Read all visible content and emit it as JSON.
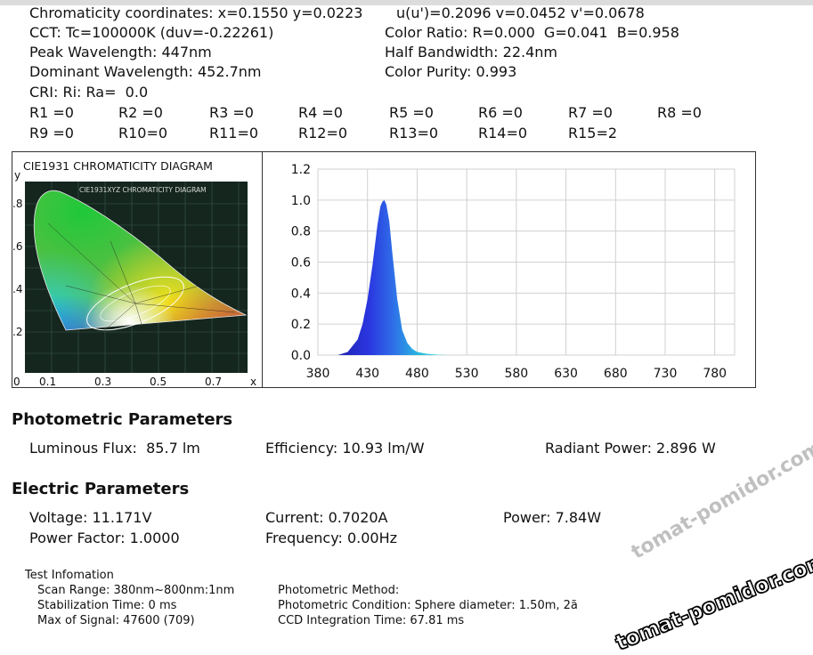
{
  "header": {
    "chromaticity": "Chromaticity coordinates: x=0.1550 y=0.0223",
    "uv": "u(u')=0.2096 v=0.0452 v'=0.0678",
    "cct": "CCT: Tc=100000K (duv=-0.22261)",
    "color_ratio": "Color Ratio: R=0.000  G=0.041  B=0.958",
    "peak": "Peak Wavelength: 447nm",
    "half_bandwidth": "Half Bandwidth: 22.4nm",
    "dominant": "Dominant Wavelength: 452.7nm",
    "purity": "Color Purity: 0.993",
    "cri": "CRI: Ri: Ra=  0.0"
  },
  "ri_values": [
    "R1 =0",
    "R2 =0",
    "R3 =0",
    "R4 =0",
    "R5 =0",
    "R6 =0",
    "R7 =0",
    "R8 =0",
    "R9 =0",
    "R10=0",
    "R11=0",
    "R12=0",
    "R13=0",
    "R14=0",
    "R15=2"
  ],
  "cie": {
    "title": "CIE1931 CHROMATICITY DIAGRAM",
    "inner_title": "CIE1931XYZ CHROMATICITY DIAGRAM",
    "y_label": "y",
    "x_label": "x",
    "y_ticks": [
      ".8",
      ".6",
      ".4",
      ".2"
    ],
    "x_ticks": [
      "0",
      "0.1",
      "0.3",
      "0.5",
      "0.7"
    ]
  },
  "chart_data": {
    "type": "area",
    "title": "",
    "xlabel": "",
    "ylabel": "",
    "xlim": [
      380,
      800
    ],
    "ylim": [
      0,
      1.2
    ],
    "x_ticks": [
      380,
      430,
      480,
      530,
      580,
      630,
      680,
      730,
      780
    ],
    "y_ticks": [
      "0.0",
      "0.2",
      "0.4",
      "0.6",
      "0.8",
      "1.0",
      "1.2"
    ],
    "grid": true,
    "series": [
      {
        "x": [
          400,
          410,
          420,
          425,
          430,
          435,
          440,
          443,
          445,
          447,
          449,
          452,
          455,
          460,
          465,
          470,
          475,
          480,
          490,
          500,
          510
        ],
        "y": [
          0.0,
          0.02,
          0.1,
          0.2,
          0.36,
          0.58,
          0.84,
          0.96,
          0.99,
          1.0,
          0.97,
          0.86,
          0.66,
          0.36,
          0.16,
          0.08,
          0.04,
          0.02,
          0.008,
          0.003,
          0.0
        ]
      }
    ]
  },
  "photometric": {
    "heading": "Photometric Parameters",
    "flux": "Luminous Flux:  85.7 lm",
    "efficiency": "Efficiency: 10.93 lm/W",
    "radiant": "Radiant Power: 2.896 W"
  },
  "electric": {
    "heading": "Electric Parameters",
    "voltage": "Voltage: 11.171V",
    "current": "Current: 0.7020A",
    "power": "Power: 7.84W",
    "pf": "Power Factor: 1.0000",
    "frequency": "Frequency: 0.00Hz"
  },
  "test": {
    "heading": "Test Infomation",
    "scan": "Scan Range: 380nm~800nm:1nm",
    "stab": "Stabilization Time: 0 ms",
    "max": "Max of Signal: 47600 (709)",
    "method": "Photometric Method:",
    "condition": "Photometric Condition: Sphere diameter: 1.50m, 2ã",
    "ccd": "CCD Integration Time: 67.81 ms"
  },
  "watermark": {
    "text": "tomat-pomidor.com"
  }
}
